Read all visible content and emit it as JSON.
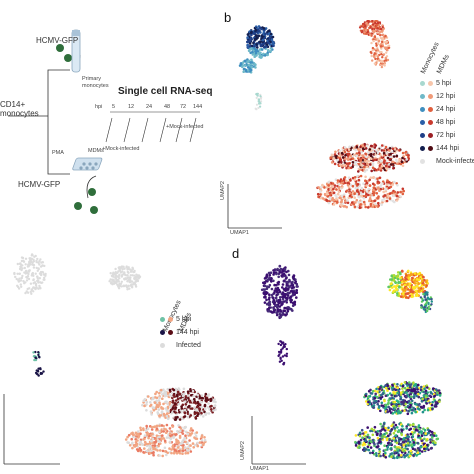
{
  "panel_a": {
    "hcmv_top": "HCMV-GFP",
    "cd14_line1": "CD14+",
    "cd14_line2": "monocytes",
    "primary_line1": "Primary",
    "primary_line2": "monocytes",
    "pma": "PMA",
    "mdms": "MDMs",
    "hcmv_bottom": "HCMV-GFP",
    "title": "Single cell RNA-seq",
    "hpi": "hpi",
    "timepoints": [
      "5",
      "12",
      "24",
      "48",
      "72",
      "144"
    ],
    "mock_left": "+Mock-infected",
    "mock_right": "+Mock-infected"
  },
  "panel_b": {
    "letter": "b",
    "axis_x": "UMAP1",
    "axis_y": "UMAP2",
    "group_monocytes": "Monocytes",
    "group_mdms": "MDMs",
    "legend": [
      {
        "label": "5 hpi",
        "mono": "#a8d8cf",
        "mdm": "#f7c6ab"
      },
      {
        "label": "12 hpi",
        "mono": "#6fb9c8",
        "mdm": "#f09a78"
      },
      {
        "label": "24 hpi",
        "mono": "#3f8fc0",
        "mdm": "#e0603f"
      },
      {
        "label": "48 hpi",
        "mono": "#2b5fa8",
        "mdm": "#c93a2e"
      },
      {
        "label": "72 hpi",
        "mono": "#1f3f88",
        "mdm": "#9c1f25"
      },
      {
        "label": "144 hpi",
        "mono": "#141f4f",
        "mdm": "#4f0c14"
      },
      {
        "label": "Mock-infected",
        "mono": "#e2e2e2",
        "mdm": ""
      }
    ]
  },
  "panel_c": {
    "group_monocytes": "Monocytes",
    "group_mdms": "MDMs",
    "legend": [
      {
        "label": "5 hpi",
        "mono": "#6fc2a6",
        "mdm": "#f2a683"
      },
      {
        "label": "144 hpi",
        "mono": "#1a1446",
        "mdm": "#5a0d16"
      },
      {
        "label": "Infected",
        "mono": "#dcdcdc",
        "mdm": ""
      }
    ]
  },
  "panel_d": {
    "letter": "d",
    "axis_x": "UMAP1",
    "axis_y": "UMAP2"
  },
  "colors": {
    "green_virus": "#2f6e3b",
    "mock_grey": "#dcdcdc"
  }
}
